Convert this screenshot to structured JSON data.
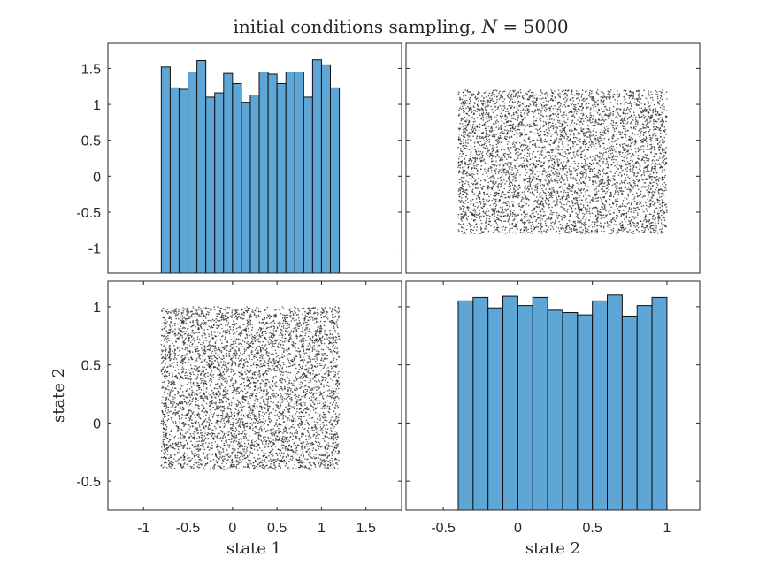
{
  "figure": {
    "title": "initial conditions sampling, N = 5000",
    "title_prefix": "initial conditions sampling, ",
    "title_var": "N",
    "title_value": " = 5000",
    "sample_count": 5000
  },
  "colors": {
    "bar_fill": "#5da6d6",
    "bar_edge": "#111111",
    "point": "#222222",
    "axes": "#262626"
  },
  "chart_data": [
    {
      "panel": "top-left",
      "type": "bar",
      "bin_edges": [
        -0.8,
        -0.7,
        -0.6,
        -0.5,
        -0.4,
        -0.3,
        -0.2,
        -0.1,
        0.0,
        0.1,
        0.2,
        0.3,
        0.4,
        0.5,
        0.6,
        0.7,
        0.8,
        0.9,
        1.0,
        1.1,
        1.2
      ],
      "values": [
        1.52,
        1.23,
        1.21,
        1.45,
        1.61,
        1.1,
        1.16,
        1.43,
        1.29,
        1.03,
        1.13,
        1.45,
        1.42,
        1.29,
        1.45,
        1.45,
        1.1,
        1.62,
        1.55,
        1.23
      ],
      "xlim": [
        -1.4,
        1.9
      ],
      "ylim": [
        -1.35,
        1.85
      ],
      "yticks": [
        1.5,
        1,
        0.5,
        0,
        -0.5,
        -1
      ],
      "ytick_labels": [
        "1.5",
        "1",
        "0.5",
        "0",
        "-0.5",
        "-1"
      ],
      "xlabel": "",
      "ylabel": ""
    },
    {
      "panel": "top-right",
      "type": "scatter",
      "x_range": [
        -0.4,
        1.0
      ],
      "y_range": [
        -0.8,
        1.2
      ],
      "xlim": [
        -0.75,
        1.22
      ],
      "ylim": [
        -1.35,
        1.85
      ],
      "point_count": 5000,
      "xlabel": "",
      "ylabel": ""
    },
    {
      "panel": "bottom-left",
      "type": "scatter",
      "x_range": [
        -0.8,
        1.2
      ],
      "y_range": [
        -0.4,
        1.0
      ],
      "xlim": [
        -1.4,
        1.9
      ],
      "ylim": [
        -0.75,
        1.22
      ],
      "point_count": 5000,
      "xticks": [
        -1,
        -0.5,
        0,
        0.5,
        1,
        1.5
      ],
      "xtick_labels": [
        "-1",
        "-0.5",
        "0",
        "0.5",
        "1",
        "1.5"
      ],
      "yticks": [
        1,
        0.5,
        0,
        -0.5
      ],
      "ytick_labels": [
        "1",
        "0.5",
        "0",
        "-0.5"
      ],
      "xlabel": "state 1",
      "ylabel": "state 2"
    },
    {
      "panel": "bottom-right",
      "type": "bar",
      "bin_edges": [
        -0.4,
        -0.3,
        -0.2,
        -0.1,
        0.0,
        0.1,
        0.2,
        0.3,
        0.4,
        0.5,
        0.6,
        0.7,
        0.8,
        0.9,
        1.0
      ],
      "values": [
        1.05,
        1.08,
        0.99,
        1.09,
        1.01,
        1.08,
        0.97,
        0.95,
        0.93,
        1.05,
        1.1,
        0.92,
        1.01,
        1.08
      ],
      "xlim": [
        -0.75,
        1.22
      ],
      "ylim": [
        -0.75,
        1.22
      ],
      "xticks": [
        -0.5,
        0,
        0.5,
        1
      ],
      "xtick_labels": [
        "-0.5",
        "0",
        "0.5",
        "1"
      ],
      "xlabel": "state 2",
      "ylabel": ""
    }
  ]
}
